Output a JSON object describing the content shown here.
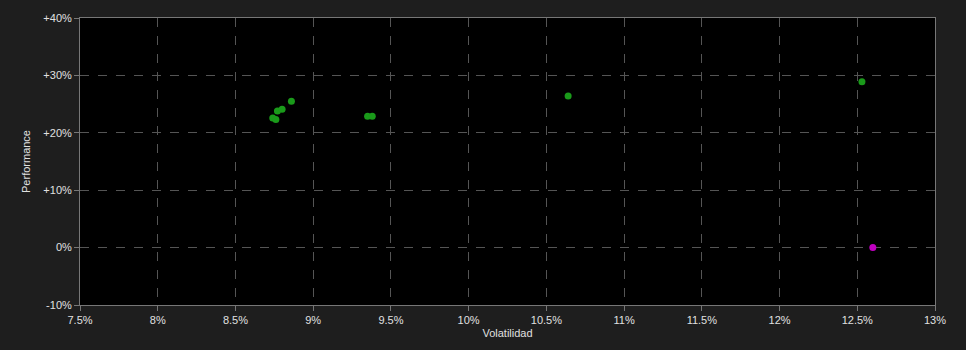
{
  "chart_data": {
    "type": "scatter",
    "x_label": "Volatilidad",
    "y_label": "Performance",
    "series": [
      {
        "color": "#1a9a1a",
        "marker": "circle",
        "x": [
          8.74,
          8.76,
          8.77,
          8.8,
          8.86,
          9.35,
          9.38,
          10.64,
          12.53
        ],
        "values": [
          22.6,
          22.3,
          23.8,
          24.1,
          25.5,
          22.9,
          22.9,
          26.4,
          28.9
        ]
      },
      {
        "color": "#c000c0",
        "marker": "circle",
        "x": [
          12.6
        ],
        "values": [
          0
        ]
      }
    ],
    "xlim": [
      7.5,
      13
    ],
    "xticks": [
      {
        "value": 7.5,
        "label": "7.5%"
      },
      {
        "value": 8,
        "label": "8%"
      },
      {
        "value": 8.5,
        "label": "8.5%"
      },
      {
        "value": 9,
        "label": "9%"
      },
      {
        "value": 9.5,
        "label": "9.5%"
      },
      {
        "value": 10,
        "label": "10%"
      },
      {
        "value": 10.5,
        "label": "10.5%"
      },
      {
        "value": 11,
        "label": "11%"
      },
      {
        "value": 11.5,
        "label": "11.5%"
      },
      {
        "value": 12,
        "label": "12%"
      },
      {
        "value": 12.5,
        "label": "12.5%"
      },
      {
        "value": 13,
        "label": "13%"
      }
    ],
    "ylim": [
      -10,
      40
    ],
    "yticks": [
      {
        "value": -10,
        "label": "-10%"
      },
      {
        "value": 0,
        "label": "0%"
      },
      {
        "value": 10,
        "label": "+10%"
      },
      {
        "value": 20,
        "label": "+20%"
      },
      {
        "value": 30,
        "label": "+30%"
      },
      {
        "value": 40,
        "label": "+40%"
      }
    ],
    "grid": true
  }
}
